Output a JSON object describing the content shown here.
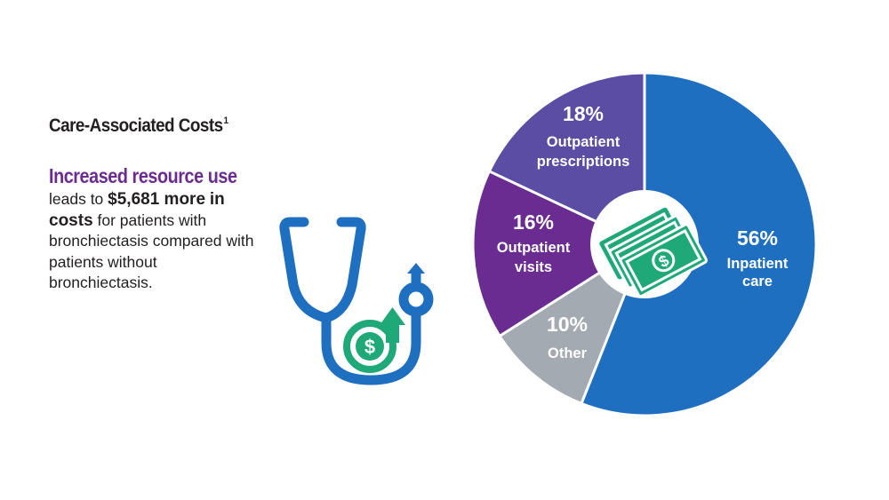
{
  "header": {
    "title": "Care-Associated Costs",
    "title_sup": "1"
  },
  "text": {
    "headline": "Increased resource use",
    "line_prefix": "leads to ",
    "amount": "$5,681 more",
    "strong_tail": "in costs",
    "line_rest": " for patients with bronchiectasis compared with patients without bronchiectasis."
  },
  "icons": {
    "illustration": "stethoscope-dollar-arrow-icon",
    "center": "cash-bills-icon"
  },
  "colors": {
    "title": "#231f20",
    "headline": "#6b2c91",
    "stethoscope": "#1f6fc1",
    "money_green": "#1fa878",
    "inpatient": "#1f6fc1",
    "outpatient_prescriptions": "#5a4da3",
    "outpatient_visits": "#6b2c91",
    "other": "#a3aab1"
  },
  "chart_data": {
    "type": "pie",
    "title": "",
    "unit": "%",
    "slices": [
      {
        "pct_label": "56%",
        "category": [
          "Inpatient",
          "care"
        ],
        "value": 56,
        "color": "#1f6fc1"
      },
      {
        "pct_label": "10%",
        "category": [
          "Other"
        ],
        "value": 10,
        "color": "#a3aab1"
      },
      {
        "pct_label": "16%",
        "category": [
          "Outpatient",
          "visits"
        ],
        "value": 16,
        "color": "#6b2c91"
      },
      {
        "pct_label": "18%",
        "category": [
          "Outpatient",
          "prescriptions"
        ],
        "value": 18,
        "color": "#5a4da3"
      }
    ]
  }
}
